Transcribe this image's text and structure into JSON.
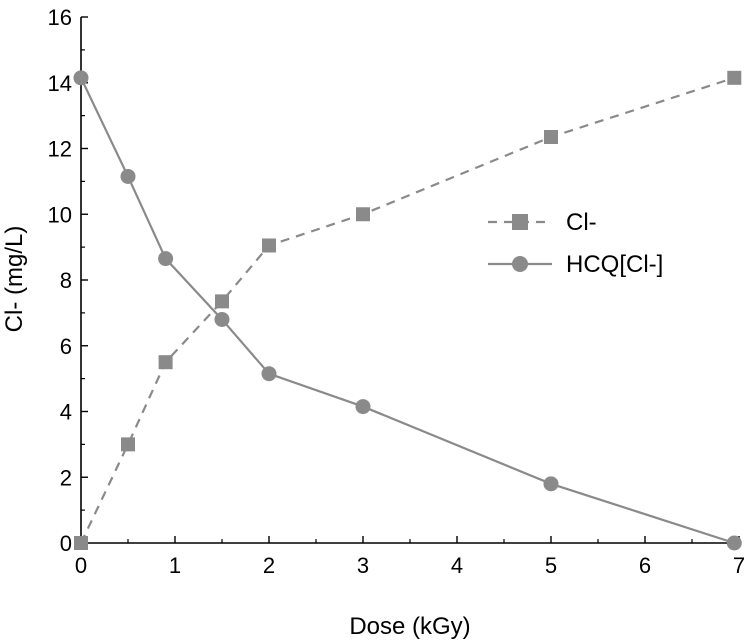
{
  "chart_data": {
    "type": "line",
    "xlabel": "Dose (kGy)",
    "ylabel": "Cl- (mg/L)",
    "xlim": [
      0,
      7
    ],
    "ylim": [
      0,
      16
    ],
    "xticks": [
      0,
      1,
      2,
      3,
      4,
      5,
      6,
      7
    ],
    "yticks": [
      0,
      2,
      4,
      6,
      8,
      10,
      12,
      14,
      16
    ],
    "grid": false,
    "legend_position": "right",
    "series": [
      {
        "name": "Cl-",
        "marker": "square",
        "line_style": "dashed",
        "color": "#8a8a8a",
        "x": [
          0,
          0.5,
          0.9,
          1.5,
          2.0,
          3.0,
          5.0,
          6.95
        ],
        "y": [
          0,
          3.0,
          5.5,
          7.35,
          9.05,
          10.0,
          12.35,
          14.15
        ]
      },
      {
        "name": "HCQ[Cl-]",
        "marker": "circle",
        "line_style": "solid",
        "color": "#8a8a8a",
        "x": [
          0,
          0.5,
          0.9,
          1.5,
          2.0,
          3.0,
          5.0,
          6.95
        ],
        "y": [
          14.15,
          11.15,
          8.65,
          6.8,
          5.15,
          4.15,
          1.8,
          0
        ]
      }
    ]
  }
}
